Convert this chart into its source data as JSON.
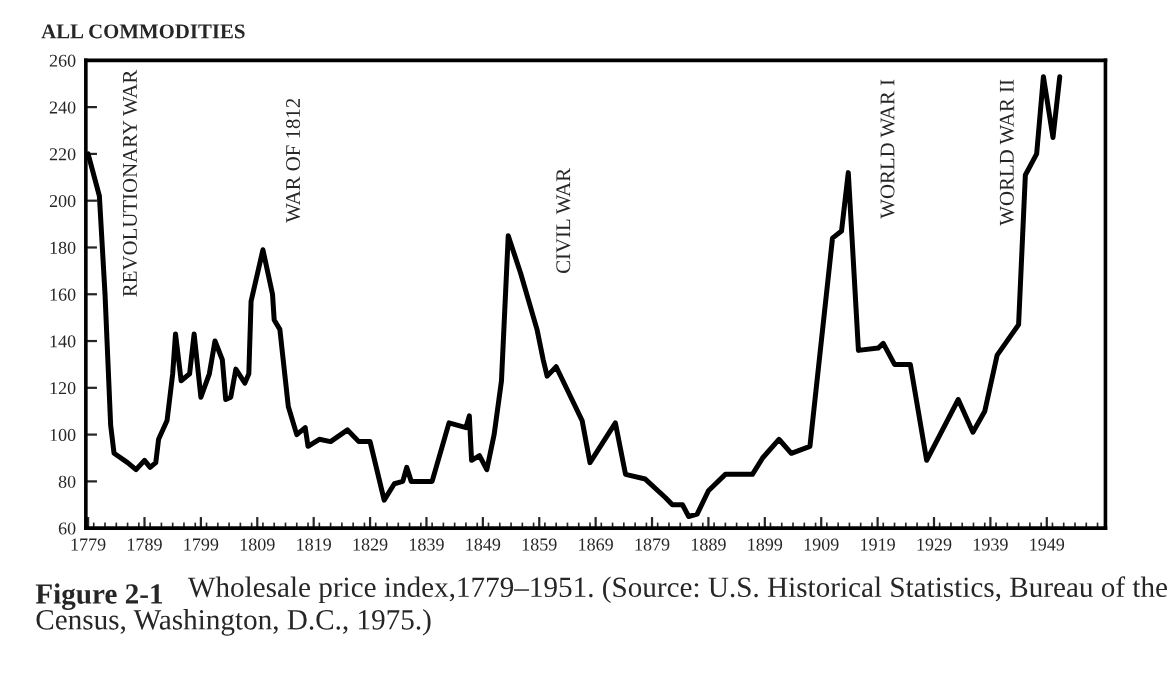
{
  "chart_data": {
    "type": "line",
    "title": "ALL COMMODITIES",
    "x": [
      1779,
      1781,
      1782,
      1783,
      1783.6,
      1786,
      1787.5,
      1789,
      1790,
      1791,
      1791.5,
      1793,
      1794,
      1794.5,
      1795.5,
      1797,
      1797.8,
      1799,
      1800.5,
      1801.5,
      1802.8,
      1803.4,
      1804.3,
      1805.2,
      1806.8,
      1807.5,
      1807.9,
      1810,
      1811.7,
      1812,
      1813,
      1814.5,
      1816,
      1817.5,
      1818,
      1820,
      1822,
      1825,
      1827,
      1829,
      1831.5,
      1833.3,
      1834.8,
      1835.5,
      1836.3,
      1840,
      1843,
      1846,
      1846.6,
      1847,
      1848.4,
      1849.7,
      1851,
      1852.3,
      1853.5,
      1855.7,
      1858.6,
      1859.7,
      1860.4,
      1862,
      1864.8,
      1866.6,
      1868,
      1872.5,
      1874.3,
      1877.8,
      1881.4,
      1882.6,
      1884.4,
      1885.5,
      1887,
      1889,
      1892,
      1896.8,
      1898.6,
      1901.5,
      1903.7,
      1907,
      1911,
      1912.6,
      1913.8,
      1915.6,
      1919.1,
      1920,
      1922,
      1924.8,
      1927.7,
      1933.3,
      1935.9,
      1938,
      1940.2,
      1944,
      1945.2,
      1947.2,
      1948.4,
      1950.1,
      1951.3
    ],
    "values": [
      220,
      202,
      160,
      104,
      92,
      88,
      85,
      89,
      86,
      88,
      98,
      106,
      126,
      143,
      123,
      126,
      143,
      116,
      126,
      140,
      132,
      115,
      116,
      128,
      122,
      126,
      157,
      179,
      160,
      149,
      145,
      112,
      100,
      103,
      95,
      98,
      97,
      102,
      97,
      97,
      72,
      79,
      80,
      86,
      80,
      80,
      105,
      103,
      108,
      89,
      91,
      85,
      100,
      123,
      185,
      169,
      145,
      132,
      125,
      129,
      115,
      106,
      88,
      105,
      83,
      81,
      73,
      70,
      70,
      65,
      66,
      76,
      83,
      83,
      90,
      98,
      92,
      95,
      184,
      187,
      212,
      136,
      137,
      139,
      130,
      130,
      89,
      115,
      101,
      110,
      134,
      147,
      211,
      220,
      253,
      227,
      253
    ],
    "color": "#000000",
    "xlim": [
      1778.6,
      1959.4
    ],
    "ylim": [
      60,
      260
    ],
    "xticks": [
      1779,
      1789,
      1799,
      1809,
      1819,
      1829,
      1839,
      1849,
      1859,
      1869,
      1879,
      1889,
      1899,
      1909,
      1919,
      1929,
      1939,
      1949
    ],
    "yticks": [
      60,
      80,
      100,
      120,
      140,
      160,
      180,
      200,
      220,
      240,
      260
    ],
    "grid": false,
    "legend": false,
    "annotations": [
      "REVOLUTIONARY WAR",
      "WAR OF 1812",
      "CIVIL WAR",
      "WORLD WAR I",
      "WORLD WAR II",
      "Figure 2-1",
      "Wholesale price index,1779–1951. (Source: U.S. Historical Statistics, Bureau of the Census, Washington, D.C., 1975.)"
    ]
  }
}
